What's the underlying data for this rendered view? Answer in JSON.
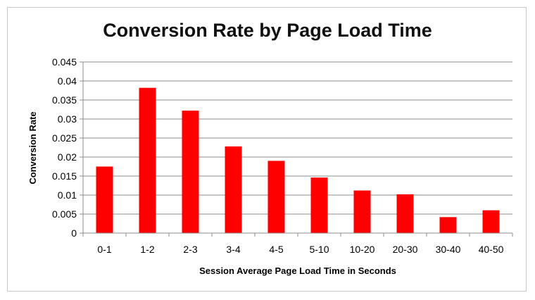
{
  "chart_data": {
    "type": "bar",
    "title": "Conversion Rate by Page Load Time",
    "xlabel": "Session Average Page Load Time in Seconds",
    "ylabel": "Conversion Rate",
    "categories": [
      "0-1",
      "1-2",
      "2-3",
      "3-4",
      "4-5",
      "5-10",
      "10-20",
      "20-30",
      "30-40",
      "40-50"
    ],
    "values": [
      0.0175,
      0.0382,
      0.0322,
      0.0228,
      0.019,
      0.0146,
      0.0112,
      0.0102,
      0.0042,
      0.006
    ],
    "ylim": [
      0,
      0.045
    ],
    "yticks": [
      "0",
      "0.005",
      "0.01",
      "0.015",
      "0.02",
      "0.025",
      "0.03",
      "0.035",
      "0.04",
      "0.045"
    ],
    "grid": true,
    "legend": "none",
    "colors": {
      "bar": "#ff0000",
      "grid": "#8c8c8c",
      "axis": "#8c8c8c"
    }
  }
}
